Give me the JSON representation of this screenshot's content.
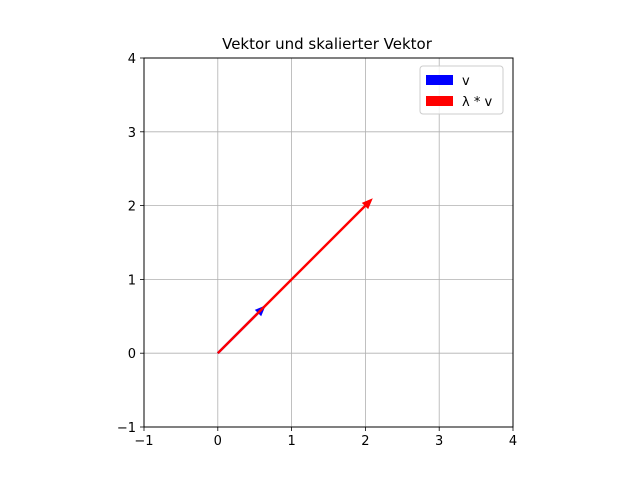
{
  "chart_data": {
    "type": "quiver",
    "title": "Vektor und skalierter Vektor",
    "xlabel": "",
    "ylabel": "",
    "xlim": [
      -1,
      4
    ],
    "ylim": [
      -1,
      4
    ],
    "xticks": [
      "−1",
      "0",
      "1",
      "2",
      "3",
      "4"
    ],
    "yticks": [
      "−1",
      "0",
      "1",
      "2",
      "3",
      "4"
    ],
    "grid": true,
    "legend_position": "top-right",
    "series": [
      {
        "name": "v",
        "color": "#0000ff",
        "origin": [
          0,
          0
        ],
        "vector": [
          0.65,
          0.65
        ]
      },
      {
        "name": "λ * v",
        "color": "#ff0000",
        "origin": [
          0,
          0
        ],
        "vector": [
          2.1,
          2.1
        ]
      }
    ]
  }
}
